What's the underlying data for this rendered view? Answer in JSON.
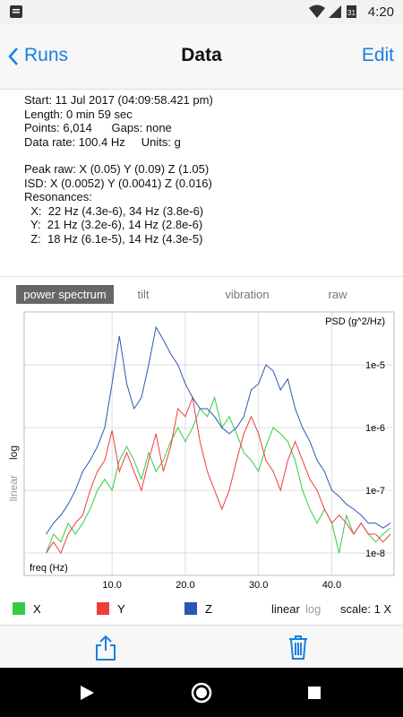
{
  "status": {
    "time": "4:20"
  },
  "nav": {
    "back": "Runs",
    "title": "Data",
    "edit": "Edit"
  },
  "info": {
    "block1": [
      "Start: 11 Jul 2017 (04:09:58.421 pm)",
      "Length: 0 min 59 sec",
      "Points: 6,014      Gaps: none",
      "Data rate: 100.4 Hz     Units: g"
    ],
    "block2": [
      "Peak raw: X (0.05) Y (0.09) Z (1.05)",
      "ISD: X (0.0052) Y (0.0041) Z (0.016)",
      "Resonances:",
      "  X:  22 Hz (4.3e-6), 34 Hz (3.8e-6)",
      "  Y:  21 Hz (3.2e-6), 14 Hz (2.8e-6)",
      "  Z:  18 Hz (6.1e-5), 14 Hz (4.3e-5)"
    ]
  },
  "tabs": {
    "items": [
      "power spectrum",
      "tilt",
      "vibration",
      "raw"
    ],
    "selected": 0
  },
  "chart_data": {
    "type": "line",
    "y_label": "PSD (g^2/Hz)",
    "x_label": "freq (Hz)",
    "log_y": true,
    "grid": true,
    "xlim": [
      -2,
      48.5
    ],
    "ylim": [
      4.4e-09,
      7e-05
    ],
    "xticks": [
      {
        "value": 10,
        "label": "10.0"
      },
      {
        "value": 20,
        "label": "20.0"
      },
      {
        "value": 30,
        "label": "30.0"
      },
      {
        "value": 40,
        "label": "40.0"
      }
    ],
    "yticks": [
      {
        "value": 1e-08,
        "label": "1e-8"
      },
      {
        "value": 1e-07,
        "label": "1e-7"
      },
      {
        "value": 1e-06,
        "label": "1e-6"
      },
      {
        "value": 1e-05,
        "label": "1e-5"
      }
    ],
    "x": [
      1,
      2,
      3,
      4,
      5,
      6,
      7,
      8,
      9,
      10,
      11,
      12,
      13,
      14,
      15,
      16,
      17,
      18,
      19,
      20,
      21,
      22,
      23,
      24,
      25,
      26,
      27,
      28,
      29,
      30,
      31,
      32,
      33,
      34,
      35,
      36,
      37,
      38,
      39,
      40,
      41,
      42,
      43,
      44,
      45,
      46,
      47,
      48
    ],
    "series": [
      {
        "name": "X",
        "color": "#33cc44",
        "values": [
          1e-08,
          2e-08,
          1.5e-08,
          3e-08,
          2e-08,
          3e-08,
          5e-08,
          1e-07,
          1.5e-07,
          1e-07,
          3e-07,
          5e-07,
          3e-07,
          1.5e-07,
          4e-07,
          2e-07,
          3e-07,
          6e-07,
          1e-06,
          6e-07,
          1e-06,
          2e-06,
          1.5e-06,
          3e-06,
          1e-06,
          1.5e-06,
          8e-07,
          4e-07,
          3e-07,
          2e-07,
          5e-07,
          1e-06,
          8e-07,
          6e-07,
          3e-07,
          1e-07,
          5e-08,
          3e-08,
          5e-08,
          3e-08,
          1e-08,
          4e-08,
          2e-08,
          3e-08,
          2e-08,
          1.5e-08,
          2e-08,
          2.5e-08
        ]
      },
      {
        "name": "Y",
        "color": "#f03c3c",
        "values": [
          1e-08,
          1.5e-08,
          1e-08,
          2e-08,
          3e-08,
          4e-08,
          1e-07,
          2e-07,
          3e-07,
          9e-07,
          2e-07,
          4e-07,
          2e-07,
          1e-07,
          3e-07,
          8e-07,
          2e-07,
          5e-07,
          2e-06,
          1.5e-06,
          3e-06,
          6e-07,
          2e-07,
          1e-07,
          5e-08,
          1e-07,
          3e-07,
          8e-07,
          1.5e-06,
          8e-07,
          3e-07,
          2e-07,
          1e-07,
          3e-07,
          6e-07,
          3e-07,
          1.5e-07,
          1e-07,
          5e-08,
          3e-08,
          4e-08,
          3e-08,
          2e-08,
          3e-08,
          2e-08,
          2e-08,
          1.5e-08,
          2e-08
        ]
      },
      {
        "name": "Z",
        "color": "#2a56b8",
        "values": [
          2e-08,
          3e-08,
          4e-08,
          6e-08,
          1e-07,
          2e-07,
          3e-07,
          5e-07,
          1e-06,
          5e-06,
          2.9e-05,
          5e-06,
          2e-06,
          3e-06,
          1e-05,
          4e-05,
          2.5e-05,
          1.5e-05,
          1e-05,
          5e-06,
          3e-06,
          2e-06,
          2e-06,
          1.5e-06,
          1e-06,
          8e-07,
          1e-06,
          1.5e-06,
          4e-06,
          5e-06,
          1e-05,
          8e-06,
          4e-06,
          6e-06,
          2e-06,
          1e-06,
          6e-07,
          3e-07,
          2e-07,
          1e-07,
          8e-08,
          6e-08,
          5e-08,
          4e-08,
          3e-08,
          3e-08,
          2.5e-08,
          3e-08
        ]
      }
    ]
  },
  "controls": {
    "side_linear": "linear",
    "side_log": "log",
    "linear": "linear",
    "log": "log",
    "scale": "scale: 1 X"
  }
}
